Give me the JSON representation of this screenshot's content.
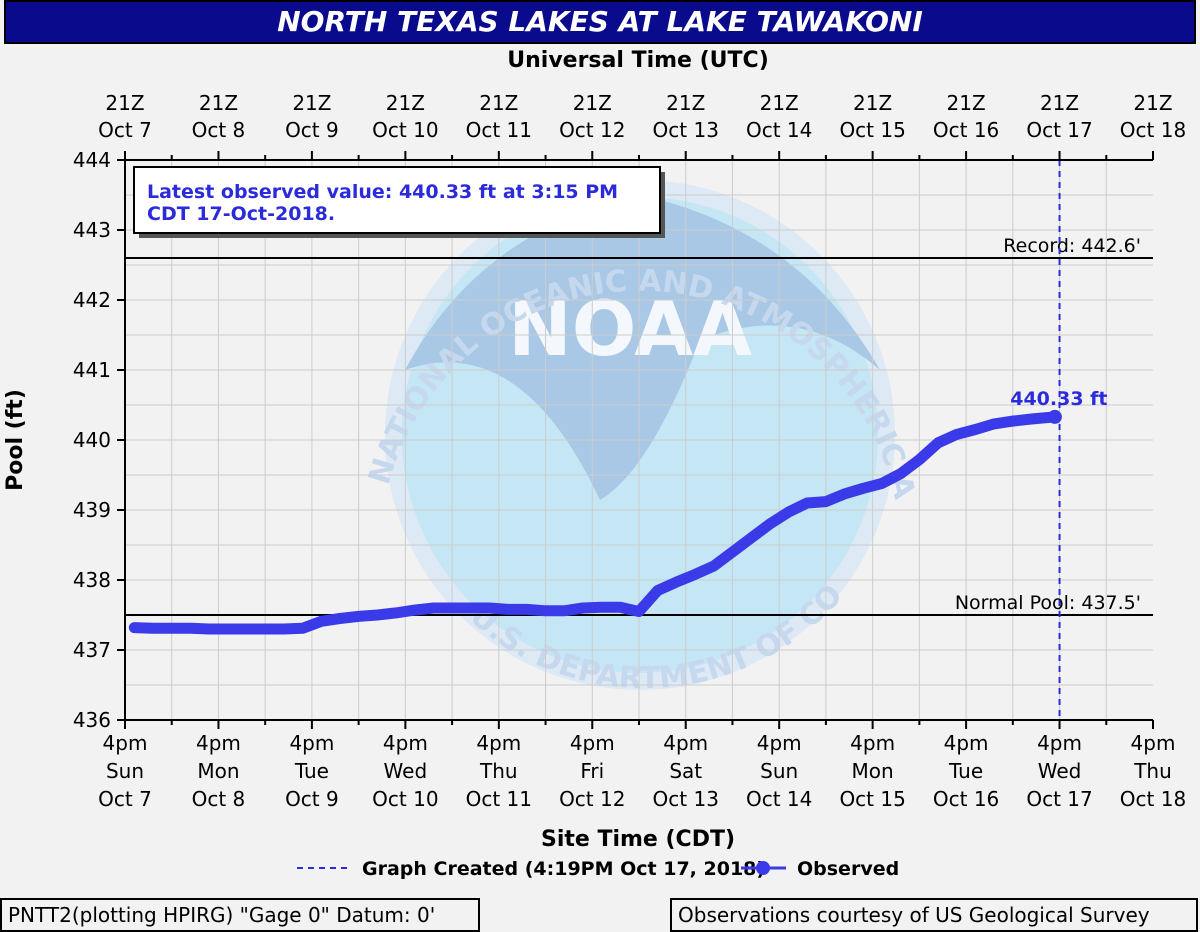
{
  "chart_data": {
    "type": "line",
    "title": "NORTH TEXAS LAKES AT LAKE TAWAKONI",
    "top_axis_title": "Universal Time (UTC)",
    "xlabel": "Site Time (CDT)",
    "ylabel": "Pool (ft)",
    "ylim": [
      436,
      444
    ],
    "yticks": [
      436,
      437,
      438,
      439,
      440,
      441,
      442,
      443,
      444
    ],
    "top_ticks": [
      [
        "21Z",
        "Oct 7"
      ],
      [
        "21Z",
        "Oct  8"
      ],
      [
        "21Z",
        "Oct  9"
      ],
      [
        "21Z",
        "Oct 10"
      ],
      [
        "21Z",
        "Oct 11"
      ],
      [
        "21Z",
        "Oct 12"
      ],
      [
        "21Z",
        "Oct 13"
      ],
      [
        "21Z",
        "Oct 14"
      ],
      [
        "21Z",
        "Oct 15"
      ],
      [
        "21Z",
        "Oct 16"
      ],
      [
        "21Z",
        "Oct 17"
      ],
      [
        "21Z",
        "Oct 18"
      ]
    ],
    "bottom_ticks": [
      [
        "4pm",
        "Sun",
        "Oct 7"
      ],
      [
        "4pm",
        "Mon",
        "Oct 8"
      ],
      [
        "4pm",
        "Tue",
        "Oct 9"
      ],
      [
        "4pm",
        "Wed",
        "Oct 10"
      ],
      [
        "4pm",
        "Thu",
        "Oct 11"
      ],
      [
        "4pm",
        "Fri",
        "Oct 12"
      ],
      [
        "4pm",
        "Sat",
        "Oct 13"
      ],
      [
        "4pm",
        "Sun",
        "Oct 14"
      ],
      [
        "4pm",
        "Mon",
        "Oct 15"
      ],
      [
        "4pm",
        "Tue",
        "Oct 16"
      ],
      [
        "4pm",
        "Wed",
        "Oct 17"
      ],
      [
        "4pm",
        "Thu",
        "Oct 18"
      ]
    ],
    "xlim_days": [
      0,
      11
    ],
    "series": [
      {
        "name": "Observed",
        "color": "#3a3ae8",
        "x_days": [
          0.1,
          0.3,
          0.5,
          0.7,
          0.9,
          1.1,
          1.3,
          1.5,
          1.7,
          1.9,
          2.1,
          2.3,
          2.5,
          2.7,
          2.9,
          3.1,
          3.3,
          3.5,
          3.7,
          3.9,
          4.1,
          4.3,
          4.5,
          4.7,
          4.9,
          5.1,
          5.3,
          5.5,
          5.7,
          5.9,
          6.1,
          6.3,
          6.5,
          6.7,
          6.9,
          7.1,
          7.3,
          7.5,
          7.7,
          7.9,
          8.1,
          8.3,
          8.5,
          8.7,
          8.9,
          9.1,
          9.3,
          9.5,
          9.7,
          9.95
        ],
        "y_values": [
          437.32,
          437.31,
          437.31,
          437.31,
          437.3,
          437.3,
          437.3,
          437.3,
          437.3,
          437.31,
          437.41,
          437.45,
          437.48,
          437.5,
          437.53,
          437.57,
          437.6,
          437.6,
          437.6,
          437.6,
          437.58,
          437.58,
          437.56,
          437.56,
          437.6,
          437.61,
          437.61,
          437.55,
          437.85,
          437.97,
          438.08,
          438.2,
          438.4,
          438.6,
          438.8,
          438.97,
          439.1,
          439.12,
          439.23,
          439.31,
          439.38,
          439.52,
          439.72,
          439.96,
          440.08,
          440.15,
          440.23,
          440.27,
          440.3,
          440.33
        ]
      },
      {
        "name": "Graph Created (4:19PM Oct 17, 2018)",
        "style": "dashed",
        "x_day": 10.0
      }
    ],
    "reference_lines": [
      {
        "label": "Record: 442.6'",
        "value": 442.6
      },
      {
        "label": "Normal Pool: 437.5'",
        "value": 437.5
      }
    ],
    "latest_label": "440.33 ft",
    "annotation": {
      "line1": "Latest observed value:  440.33 ft at 3:15 PM",
      "line2": "CDT 17-Oct-2018."
    },
    "legend": {
      "graph_created": "Graph Created (4:19PM Oct 17, 2018)",
      "observed": "Observed"
    },
    "watermark": {
      "logo_text": "NOAA",
      "ring_top": "NATIONAL OCEANIC AND ATMOSPHERIC ADMINISTRATION",
      "ring_bottom": "U.S. DEPARTMENT OF COMMERCE"
    }
  },
  "footer": {
    "left": "PNTT2(plotting HPIRG) \"Gage 0\" Datum: 0'",
    "right": "Observations courtesy of US Geological Survey"
  },
  "colors": {
    "title_bg": "#0a0a8c",
    "series": "#3a3ae8",
    "grid": "#cccccc"
  }
}
